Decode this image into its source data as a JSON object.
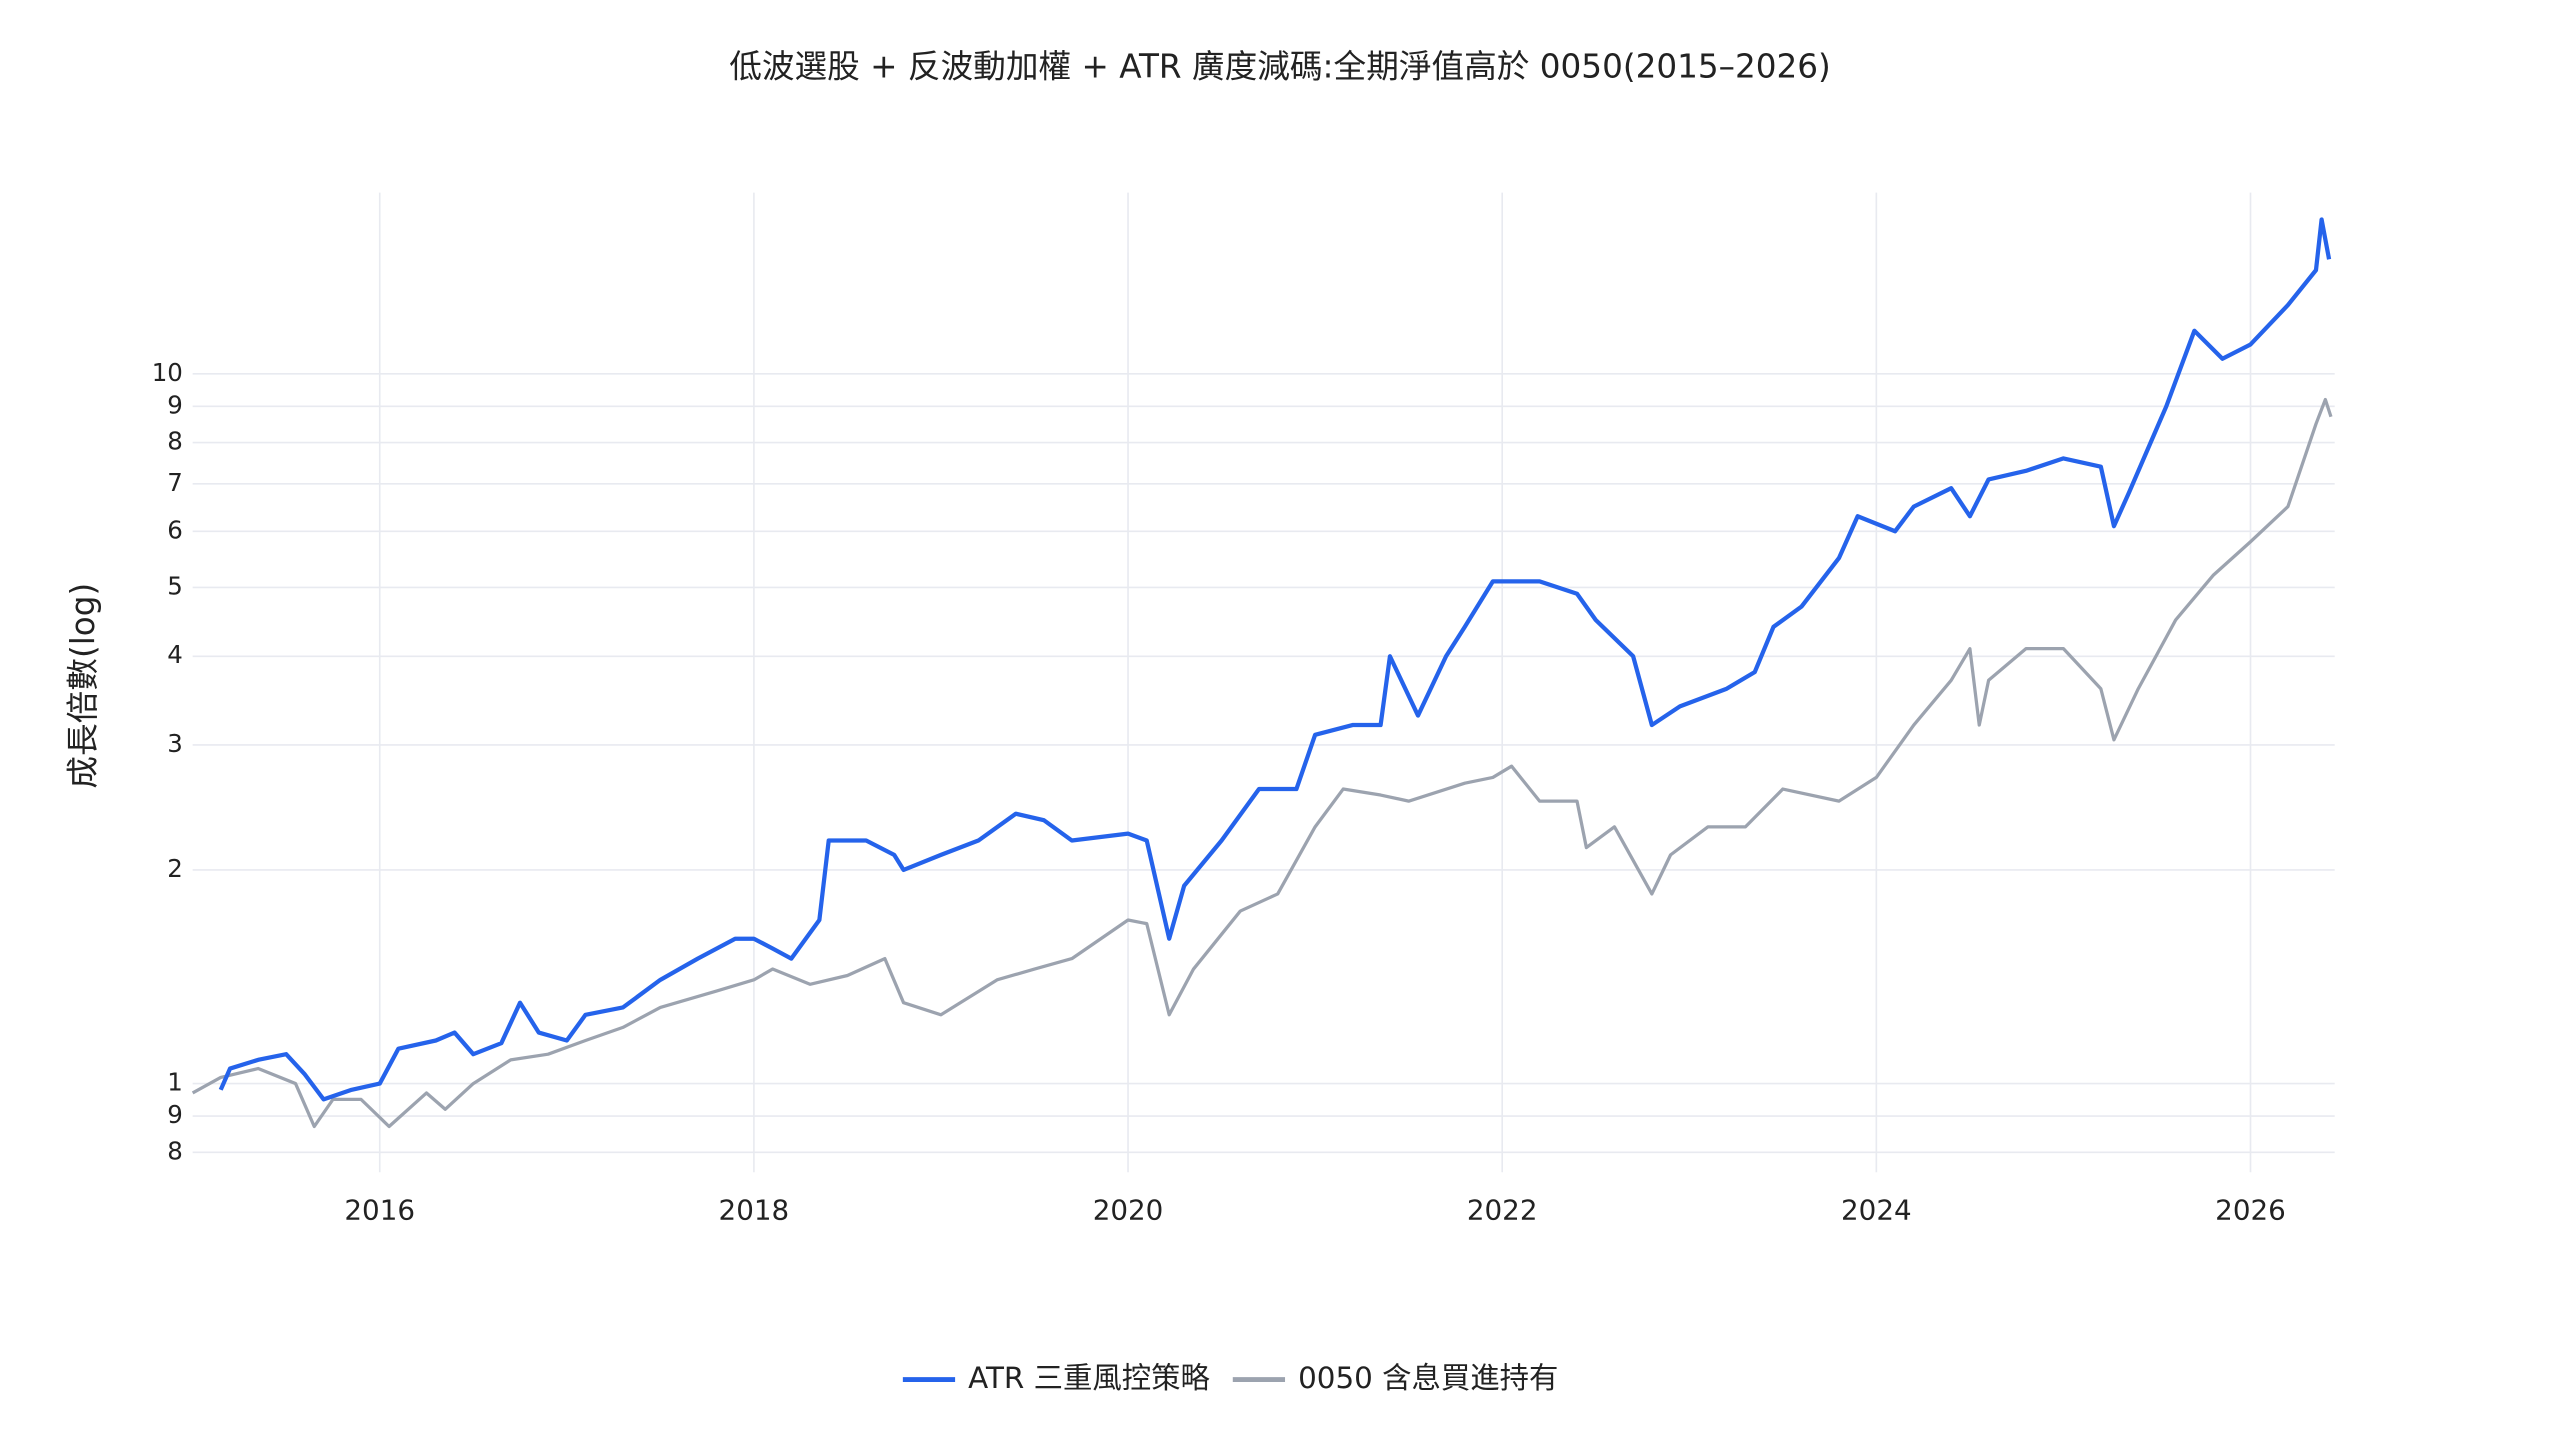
{
  "chart_data": {
    "type": "line",
    "title": "低波選股 + 反波動加權 + ATR 廣度減碼:全期淨值高於 0050(2015–2026)",
    "y_label": "成長倍數(log)",
    "yscale": "log",
    "grid": true,
    "legend": "bottom",
    "xlim": [
      2015.0,
      2026.45
    ],
    "xticks": [
      2016,
      2018,
      2020,
      2022,
      2024,
      2026
    ],
    "ylim": [
      0.75,
      18
    ],
    "yticks": [
      {
        "value": 0.8,
        "label": "8"
      },
      {
        "value": 0.9,
        "label": "9"
      },
      1,
      2,
      3,
      4,
      5,
      6,
      7,
      8,
      9,
      10
    ],
    "series": [
      {
        "name": "ATR 三重風控策略",
        "color": "#2563eb",
        "x": [
          2015.15,
          2015.2,
          2015.35,
          2015.5,
          2015.6,
          2015.7,
          2015.85,
          2016.0,
          2016.1,
          2016.3,
          2016.4,
          2016.5,
          2016.65,
          2016.75,
          2016.85,
          2017.0,
          2017.1,
          2017.3,
          2017.5,
          2017.7,
          2017.9,
          2018.0,
          2018.1,
          2018.2,
          2018.35,
          2018.4,
          2018.6,
          2018.75,
          2018.8,
          2019.0,
          2019.2,
          2019.4,
          2019.55,
          2019.7,
          2020.0,
          2020.1,
          2020.22,
          2020.3,
          2020.5,
          2020.7,
          2020.8,
          2020.9,
          2021.0,
          2021.2,
          2021.35,
          2021.4,
          2021.55,
          2021.7,
          2021.8,
          2021.95,
          2022.2,
          2022.4,
          2022.5,
          2022.7,
          2022.8,
          2022.95,
          2023.2,
          2023.35,
          2023.45,
          2023.6,
          2023.8,
          2023.9,
          2024.1,
          2024.2,
          2024.4,
          2024.5,
          2024.6,
          2024.8,
          2025.0,
          2025.2,
          2025.27,
          2025.35,
          2025.55,
          2025.7,
          2025.85,
          2026.0,
          2026.2,
          2026.35,
          2026.38,
          2026.42
        ],
        "values": [
          0.98,
          1.05,
          1.08,
          1.1,
          1.03,
          0.95,
          0.98,
          1.0,
          1.12,
          1.15,
          1.18,
          1.1,
          1.14,
          1.3,
          1.18,
          1.15,
          1.25,
          1.28,
          1.4,
          1.5,
          1.6,
          1.6,
          1.55,
          1.5,
          1.7,
          2.2,
          2.2,
          2.1,
          2.0,
          2.1,
          2.2,
          2.4,
          2.35,
          2.2,
          2.25,
          2.2,
          1.6,
          1.9,
          2.2,
          2.6,
          2.6,
          2.6,
          3.1,
          3.2,
          3.2,
          4.0,
          3.3,
          4.0,
          4.4,
          5.1,
          5.1,
          4.9,
          4.5,
          4.0,
          3.2,
          3.4,
          3.6,
          3.8,
          4.4,
          4.7,
          5.5,
          6.3,
          6.0,
          6.5,
          6.9,
          6.3,
          7.1,
          7.3,
          7.6,
          7.4,
          6.1,
          6.8,
          9.0,
          11.5,
          10.5,
          11.0,
          12.5,
          14.0,
          16.5,
          14.5
        ]
      },
      {
        "name": "0050 含息買進持有",
        "color": "#9ca3af",
        "x": [
          2015.0,
          2015.15,
          2015.35,
          2015.55,
          2015.65,
          2015.75,
          2015.9,
          2016.05,
          2016.25,
          2016.35,
          2016.5,
          2016.7,
          2016.9,
          2017.1,
          2017.3,
          2017.5,
          2017.8,
          2018.0,
          2018.1,
          2018.3,
          2018.5,
          2018.7,
          2018.8,
          2019.0,
          2019.3,
          2019.5,
          2019.7,
          2020.0,
          2020.1,
          2020.22,
          2020.35,
          2020.6,
          2020.8,
          2021.0,
          2021.15,
          2021.35,
          2021.5,
          2021.8,
          2021.95,
          2022.05,
          2022.2,
          2022.4,
          2022.45,
          2022.6,
          2022.8,
          2022.9,
          2023.1,
          2023.3,
          2023.5,
          2023.8,
          2024.0,
          2024.2,
          2024.4,
          2024.5,
          2024.55,
          2024.6,
          2024.8,
          2025.0,
          2025.2,
          2025.27,
          2025.4,
          2025.6,
          2025.8,
          2026.0,
          2026.2,
          2026.35,
          2026.4,
          2026.43
        ],
        "values": [
          0.97,
          1.02,
          1.05,
          1.0,
          0.87,
          0.95,
          0.95,
          0.87,
          0.97,
          0.92,
          1.0,
          1.08,
          1.1,
          1.15,
          1.2,
          1.28,
          1.35,
          1.4,
          1.45,
          1.38,
          1.42,
          1.5,
          1.3,
          1.25,
          1.4,
          1.45,
          1.5,
          1.7,
          1.68,
          1.25,
          1.45,
          1.75,
          1.85,
          2.3,
          2.6,
          2.55,
          2.5,
          2.65,
          2.7,
          2.8,
          2.5,
          2.5,
          2.15,
          2.3,
          1.85,
          2.1,
          2.3,
          2.3,
          2.6,
          2.5,
          2.7,
          3.2,
          3.7,
          4.1,
          3.2,
          3.7,
          4.1,
          4.1,
          3.6,
          3.05,
          3.6,
          4.5,
          5.2,
          5.8,
          6.5,
          8.5,
          9.2,
          8.7
        ]
      }
    ]
  }
}
